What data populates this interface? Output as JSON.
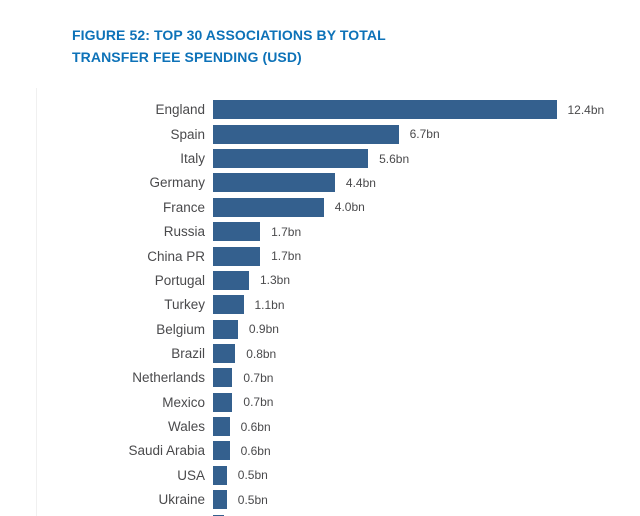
{
  "figure": {
    "title_line1": "FIGURE 52: TOP 30 ASSOCIATIONS BY TOTAL",
    "title_line2": "TRANSFER FEE SPENDING (USD)"
  },
  "colors": {
    "title": "#0d72b8",
    "bar": "#34608e",
    "label": "#4a4a4c"
  },
  "chart_data": {
    "type": "bar",
    "orientation": "horizontal",
    "title": "FIGURE 52: TOP 30 ASSOCIATIONS BY TOTAL TRANSFER FEE SPENDING (USD)",
    "unit": "USD bn",
    "categories": [
      "England",
      "Spain",
      "Italy",
      "Germany",
      "France",
      "Russia",
      "China PR",
      "Portugal",
      "Turkey",
      "Belgium",
      "Brazil",
      "Netherlands",
      "Mexico",
      "Wales",
      "Saudi Arabia",
      "USA",
      "Ukraine"
    ],
    "values": [
      12.4,
      6.7,
      5.6,
      4.4,
      4.0,
      1.7,
      1.7,
      1.3,
      1.1,
      0.9,
      0.8,
      0.7,
      0.7,
      0.6,
      0.6,
      0.5,
      0.5
    ],
    "value_labels": [
      "12.4bn",
      "6.7bn",
      "5.6bn",
      "4.4bn",
      "4.0bn",
      "1.7bn",
      "1.7bn",
      "1.3bn",
      "1.1bn",
      "0.9bn",
      "0.8bn",
      "0.7bn",
      "0.7bn",
      "0.6bn",
      "0.6bn",
      "0.5bn",
      "0.5bn"
    ],
    "partial_row": {
      "label": "",
      "approx_value": 0.4,
      "value_label": "",
      "cut_off": true
    },
    "bar_color": "#34608e",
    "xlim": [
      0,
      12.4
    ],
    "grid": false,
    "legend": false
  }
}
